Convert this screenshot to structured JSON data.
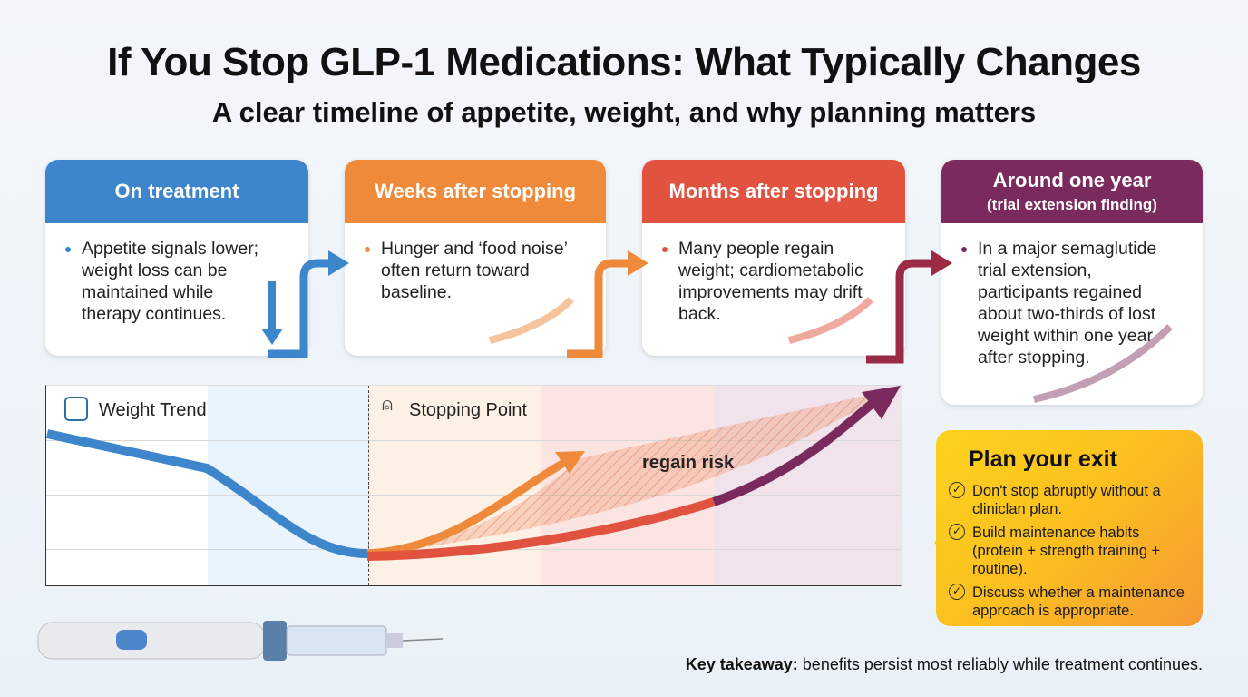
{
  "header": {
    "title": "If You Stop GLP-1 Medications: What Typically Changes",
    "subtitle": "A clear timeline of appetite, weight, and why planning matters"
  },
  "stages": [
    {
      "title": "On treatment",
      "note": "",
      "text": "Appetite signals lower; weight loss can be maintained while therapy continues.",
      "color": "#3d86cc"
    },
    {
      "title": "Weeks after stopping",
      "note": "",
      "text": "Hunger and ‘food noise’ often return toward baseline.",
      "color": "#ee8a3a"
    },
    {
      "title": "Months after stopping",
      "note": "",
      "text": "Many people regain weight; cardiometabolic improvements may drift back.",
      "color": "#e1533f"
    },
    {
      "title": "Around one year",
      "note": "(trial extension finding)",
      "text": "In a major semaglutide trial extension, participants regained about two-thirds of lost weight within one year after stopping.",
      "color": "#7a2a5c"
    }
  ],
  "chart": {
    "weight_label": "Weight Trend",
    "stop_label": "Stopping Point",
    "regain_label": "regain risk",
    "icons": [
      "scale-icon",
      "person-icon"
    ]
  },
  "plan": {
    "title": "Plan your exit",
    "items": [
      "Don't stop abruptly without a cliniclan plan.",
      "Build maintenance habits (protein + strength training + routine).",
      "Discuss whether a maintenance approach is appropriate."
    ]
  },
  "takeaway": {
    "bold": "Key takeaway:",
    "text": " benefits persist most reliably while treatment continues."
  }
}
